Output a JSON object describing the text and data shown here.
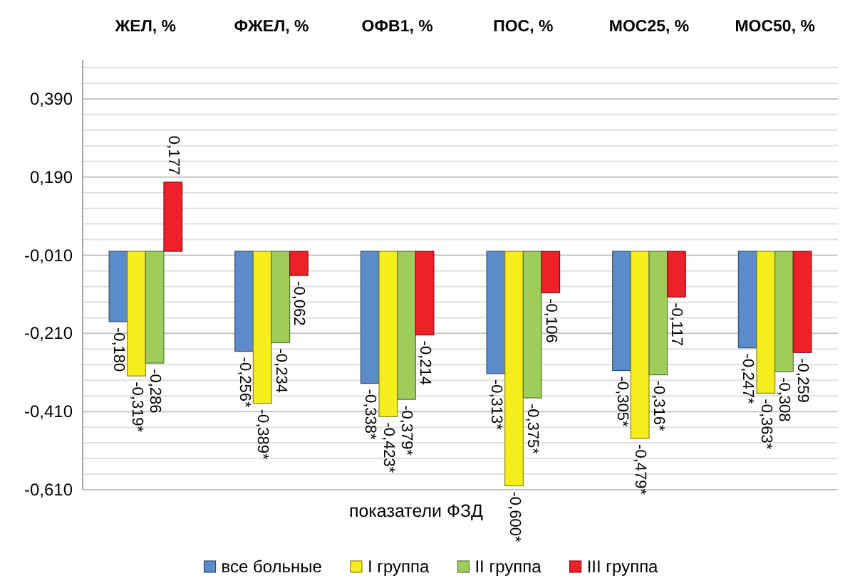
{
  "chart_data": {
    "type": "bar",
    "categories": [
      "ЖЕЛ, %",
      "ФЖЕЛ, %",
      "ОФВ1, %",
      "ПОС, %",
      "МОС25, %",
      "МОС50, %"
    ],
    "xlabel": "показатели ФЗД",
    "series": [
      {
        "name": "все больные",
        "color": "#5b8bc9",
        "values": [
          -0.18,
          -0.256,
          -0.338,
          -0.313,
          -0.305,
          -0.247
        ],
        "value_labels": [
          "-0,180",
          "-0,256*",
          "-0,338*",
          "-0,313*",
          "-0,305*",
          "-0,247*"
        ]
      },
      {
        "name": "I группа",
        "color": "#f5ee1c",
        "values": [
          -0.319,
          -0.389,
          -0.423,
          -0.6,
          -0.479,
          -0.363
        ],
        "value_labels": [
          "-0,319*",
          "-0,389*",
          "-0,423*",
          "-0,600*",
          "-0,479*",
          "-0,363*"
        ]
      },
      {
        "name": "II группа",
        "color": "#9ecd5c",
        "values": [
          -0.286,
          -0.234,
          -0.379,
          -0.375,
          -0.316,
          -0.308
        ],
        "value_labels": [
          "-0,286",
          "-0,234",
          "-0,379*",
          "-0,375*",
          "-0,316*",
          "-0,308"
        ]
      },
      {
        "name": "III группа",
        "color": "#ee2028",
        "values": [
          0.177,
          -0.062,
          -0.214,
          -0.106,
          -0.117,
          -0.259
        ],
        "value_labels": [
          "0,177",
          "-0,062",
          "-0,214",
          "-0,106",
          "-0,117",
          "-0,259"
        ]
      }
    ],
    "ylim": [
      -0.61,
      0.49
    ],
    "yticks": [
      {
        "value": -0.61,
        "label": "-0,610"
      },
      {
        "value": -0.57,
        "label": null
      },
      {
        "value": -0.53,
        "label": null
      },
      {
        "value": -0.49,
        "label": null
      },
      {
        "value": -0.45,
        "label": null
      },
      {
        "value": -0.41,
        "label": "-0,410"
      },
      {
        "value": -0.37,
        "label": null
      },
      {
        "value": -0.33,
        "label": null
      },
      {
        "value": -0.29,
        "label": null
      },
      {
        "value": -0.25,
        "label": null
      },
      {
        "value": -0.21,
        "label": "-0,210"
      },
      {
        "value": -0.17,
        "label": null
      },
      {
        "value": -0.13,
        "label": null
      },
      {
        "value": -0.09,
        "label": null
      },
      {
        "value": -0.05,
        "label": null
      },
      {
        "value": -0.01,
        "label": "-0,010"
      },
      {
        "value": 0.03,
        "label": null
      },
      {
        "value": 0.07,
        "label": null
      },
      {
        "value": 0.11,
        "label": null
      },
      {
        "value": 0.15,
        "label": null
      },
      {
        "value": 0.19,
        "label": "0,190"
      },
      {
        "value": 0.23,
        "label": null
      },
      {
        "value": 0.27,
        "label": null
      },
      {
        "value": 0.31,
        "label": null
      },
      {
        "value": 0.35,
        "label": null
      },
      {
        "value": 0.39,
        "label": "0,390"
      },
      {
        "value": 0.43,
        "label": null
      },
      {
        "value": 0.47,
        "label": null
      }
    ],
    "grid": "y",
    "legend": "bottom"
  }
}
